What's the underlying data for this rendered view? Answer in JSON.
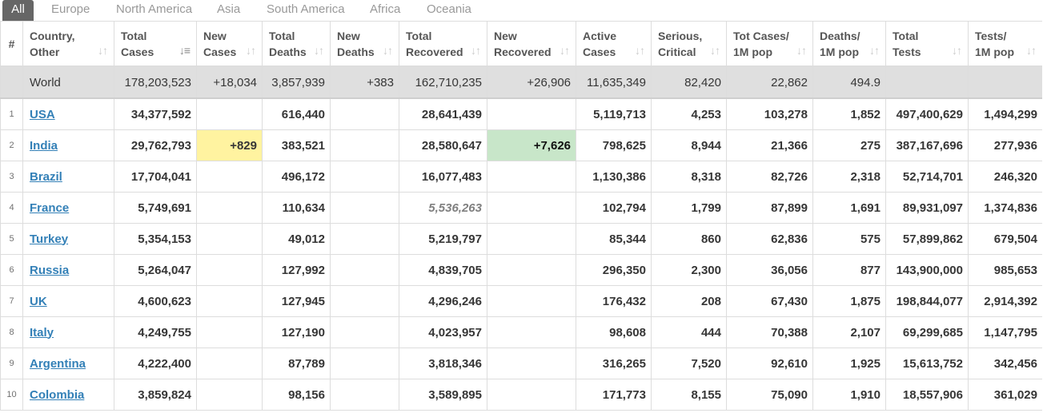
{
  "tabs": [
    "All",
    "Europe",
    "North America",
    "Asia",
    "South America",
    "Africa",
    "Oceania"
  ],
  "active_tab": "All",
  "header": {
    "index": "#",
    "columns": [
      {
        "l1": "Country,",
        "l2": "Other"
      },
      {
        "l1": "Total",
        "l2": "Cases"
      },
      {
        "l1": "New",
        "l2": "Cases"
      },
      {
        "l1": "Total",
        "l2": "Deaths"
      },
      {
        "l1": "New",
        "l2": "Deaths"
      },
      {
        "l1": "Total",
        "l2": "Recovered"
      },
      {
        "l1": "New",
        "l2": "Recovered"
      },
      {
        "l1": "Active",
        "l2": "Cases"
      },
      {
        "l1": "Serious,",
        "l2": "Critical"
      },
      {
        "l1": "Tot Cases/",
        "l2": "1M pop"
      },
      {
        "l1": "Deaths/",
        "l2": "1M pop"
      },
      {
        "l1": "Total",
        "l2": "Tests"
      },
      {
        "l1": "Tests/",
        "l2": "1M pop"
      }
    ]
  },
  "world": {
    "country": "World",
    "total_cases": "178,203,523",
    "new_cases": "+18,034",
    "total_deaths": "3,857,939",
    "new_deaths": "+383",
    "total_recovered": "162,710,235",
    "new_recovered": "+26,906",
    "active_cases": "11,635,349",
    "serious": "82,420",
    "cases_per_1m": "22,862",
    "deaths_per_1m": "494.9",
    "total_tests": "",
    "tests_per_1m": ""
  },
  "rows": [
    {
      "index": "1",
      "country": "USA",
      "total_cases": "34,377,592",
      "new_cases": "",
      "total_deaths": "616,440",
      "new_deaths": "",
      "total_recovered": "28,641,439",
      "new_recovered": "",
      "active_cases": "5,119,713",
      "serious": "4,253",
      "cases_per_1m": "103,278",
      "deaths_per_1m": "1,852",
      "total_tests": "497,400,629",
      "tests_per_1m": "1,494,299"
    },
    {
      "index": "2",
      "country": "India",
      "total_cases": "29,762,793",
      "new_cases": "+829",
      "total_deaths": "383,521",
      "new_deaths": "",
      "total_recovered": "28,580,647",
      "new_recovered": "+7,626",
      "active_cases": "798,625",
      "serious": "8,944",
      "cases_per_1m": "21,366",
      "deaths_per_1m": "275",
      "total_tests": "387,167,696",
      "tests_per_1m": "277,936"
    },
    {
      "index": "3",
      "country": "Brazil",
      "total_cases": "17,704,041",
      "new_cases": "",
      "total_deaths": "496,172",
      "new_deaths": "",
      "total_recovered": "16,077,483",
      "new_recovered": "",
      "active_cases": "1,130,386",
      "serious": "8,318",
      "cases_per_1m": "82,726",
      "deaths_per_1m": "2,318",
      "total_tests": "52,714,701",
      "tests_per_1m": "246,320"
    },
    {
      "index": "4",
      "country": "France",
      "total_cases": "5,749,691",
      "new_cases": "",
      "total_deaths": "110,634",
      "new_deaths": "",
      "total_recovered": "5,536,263",
      "new_recovered": "",
      "active_cases": "102,794",
      "serious": "1,799",
      "cases_per_1m": "87,899",
      "deaths_per_1m": "1,691",
      "total_tests": "89,931,097",
      "tests_per_1m": "1,374,836"
    },
    {
      "index": "5",
      "country": "Turkey",
      "total_cases": "5,354,153",
      "new_cases": "",
      "total_deaths": "49,012",
      "new_deaths": "",
      "total_recovered": "5,219,797",
      "new_recovered": "",
      "active_cases": "85,344",
      "serious": "860",
      "cases_per_1m": "62,836",
      "deaths_per_1m": "575",
      "total_tests": "57,899,862",
      "tests_per_1m": "679,504"
    },
    {
      "index": "6",
      "country": "Russia",
      "total_cases": "5,264,047",
      "new_cases": "",
      "total_deaths": "127,992",
      "new_deaths": "",
      "total_recovered": "4,839,705",
      "new_recovered": "",
      "active_cases": "296,350",
      "serious": "2,300",
      "cases_per_1m": "36,056",
      "deaths_per_1m": "877",
      "total_tests": "143,900,000",
      "tests_per_1m": "985,653"
    },
    {
      "index": "7",
      "country": "UK",
      "total_cases": "4,600,623",
      "new_cases": "",
      "total_deaths": "127,945",
      "new_deaths": "",
      "total_recovered": "4,296,246",
      "new_recovered": "",
      "active_cases": "176,432",
      "serious": "208",
      "cases_per_1m": "67,430",
      "deaths_per_1m": "1,875",
      "total_tests": "198,844,077",
      "tests_per_1m": "2,914,392"
    },
    {
      "index": "8",
      "country": "Italy",
      "total_cases": "4,249,755",
      "new_cases": "",
      "total_deaths": "127,190",
      "new_deaths": "",
      "total_recovered": "4,023,957",
      "new_recovered": "",
      "active_cases": "98,608",
      "serious": "444",
      "cases_per_1m": "70,388",
      "deaths_per_1m": "2,107",
      "total_tests": "69,299,685",
      "tests_per_1m": "1,147,795"
    },
    {
      "index": "9",
      "country": "Argentina",
      "total_cases": "4,222,400",
      "new_cases": "",
      "total_deaths": "87,789",
      "new_deaths": "",
      "total_recovered": "3,818,346",
      "new_recovered": "",
      "active_cases": "316,265",
      "serious": "7,520",
      "cases_per_1m": "92,610",
      "deaths_per_1m": "1,925",
      "total_tests": "15,613,752",
      "tests_per_1m": "342,456"
    },
    {
      "index": "10",
      "country": "Colombia",
      "total_cases": "3,859,824",
      "new_cases": "",
      "total_deaths": "98,156",
      "new_deaths": "",
      "total_recovered": "3,589,895",
      "new_recovered": "",
      "active_cases": "171,773",
      "serious": "8,155",
      "cases_per_1m": "75,090",
      "deaths_per_1m": "1,910",
      "total_tests": "18,557,906",
      "tests_per_1m": "361,029"
    }
  ],
  "colors": {
    "link": "#3380b7",
    "new_cases_highlight": "#fff3a0",
    "new_recovered_highlight": "#c8e6c9",
    "world_row": "#dfdfdf",
    "active_tab": "#666666"
  },
  "icons": {
    "sort": "sort-arrows-icon",
    "sort_active": "sort-descending-icon"
  }
}
